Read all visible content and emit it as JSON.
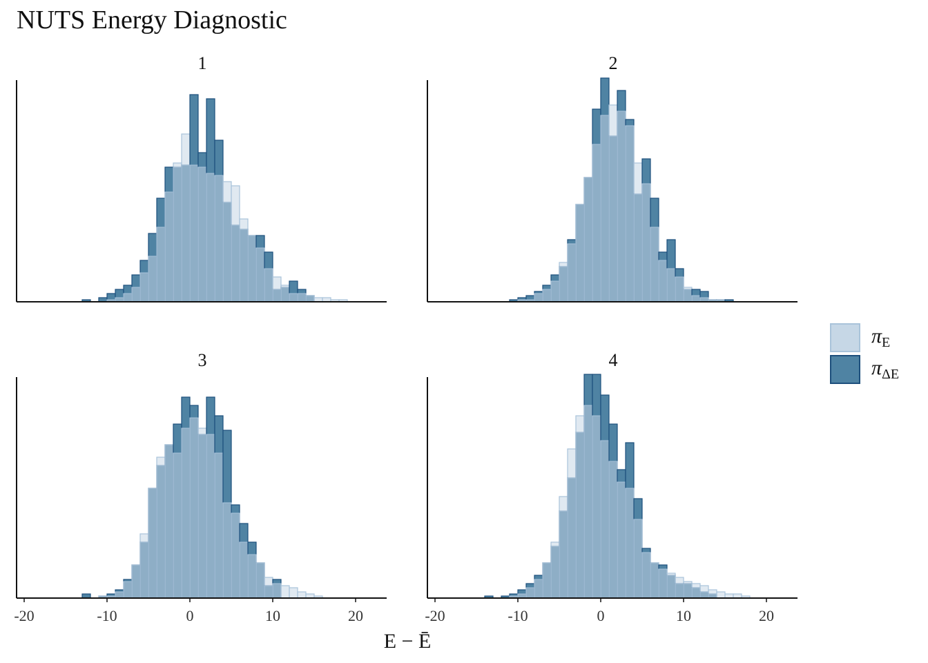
{
  "title": "NUTS Energy Diagnostic",
  "colors": {
    "pi_E_fill": "#c6d7e6",
    "pi_E_stroke": "#a9c3da",
    "pi_dE_fill": "#4f83a3",
    "pi_dE_stroke": "#1d4f7c",
    "overlap_fill": "#8eaec6"
  },
  "legend": {
    "items": [
      {
        "symbol": "π",
        "sub": "E",
        "key": "pi_E"
      },
      {
        "symbol": "π",
        "sub": "ΔE",
        "key": "pi_dE"
      }
    ]
  },
  "chart_data": {
    "type": "histogram-facets",
    "xlabel": "E − Ē",
    "xlim": [
      -21,
      24
    ],
    "xticks": [
      -20,
      -10,
      0,
      10,
      20
    ],
    "bin_width": 1,
    "bin_start": -15,
    "facets": [
      {
        "label": "1",
        "pi_E": [
          0,
          0,
          0,
          0,
          0,
          1,
          2,
          4,
          7,
          14,
          22,
          36,
          53,
          67,
          81,
          66,
          65,
          62,
          61,
          58,
          56,
          40,
          32,
          26,
          16,
          12,
          8,
          4,
          4,
          3,
          2,
          2,
          1,
          1,
          0,
          0,
          0,
          0
        ],
        "pi_dE": [
          0,
          0,
          1,
          0,
          2,
          4,
          6,
          8,
          13,
          20,
          33,
          50,
          65,
          65,
          66,
          100,
          72,
          98,
          78,
          48,
          37,
          35,
          32,
          32,
          24,
          6,
          7,
          10,
          6,
          3,
          0,
          0,
          0,
          0,
          0,
          0,
          0,
          0
        ]
      },
      {
        "label": "2",
        "pi_E": [
          0,
          0,
          0,
          0,
          0,
          1,
          1,
          4,
          6,
          10,
          19,
          28,
          47,
          60,
          76,
          90,
          95,
          92,
          85,
          67,
          57,
          36,
          20,
          16,
          12,
          7,
          3,
          2,
          1,
          1,
          0,
          0,
          0,
          0,
          0,
          0,
          0,
          0
        ],
        "pi_dE": [
          0,
          0,
          0,
          0,
          1,
          2,
          3,
          5,
          8,
          13,
          17,
          30,
          47,
          60,
          93,
          108,
          80,
          102,
          88,
          52,
          69,
          50,
          24,
          30,
          16,
          6,
          6,
          5,
          1,
          1,
          1,
          0,
          0,
          0,
          0,
          0,
          0,
          0
        ]
      },
      {
        "label": "3",
        "pi_E": [
          0,
          0,
          0,
          0,
          1,
          1,
          3,
          8,
          16,
          31,
          53,
          68,
          74,
          70,
          82,
          87,
          82,
          79,
          70,
          46,
          41,
          27,
          21,
          17,
          10,
          7,
          6,
          5,
          3,
          2,
          1,
          0,
          0,
          0,
          0,
          0,
          0,
          0
        ],
        "pi_dE": [
          0,
          0,
          2,
          0,
          1,
          2,
          4,
          9,
          16,
          27,
          53,
          64,
          74,
          84,
          97,
          93,
          79,
          97,
          88,
          81,
          45,
          36,
          27,
          17,
          6,
          9,
          0,
          0,
          0,
          0,
          0,
          0,
          0,
          0,
          0,
          0,
          0,
          0
        ]
      },
      {
        "label": "4",
        "pi_E": [
          0,
          0,
          0,
          0,
          1,
          2,
          5,
          9,
          17,
          27,
          49,
          72,
          88,
          93,
          88,
          76,
          66,
          56,
          53,
          38,
          22,
          17,
          14,
          12,
          10,
          8,
          7,
          6,
          4,
          3,
          2,
          2,
          1,
          0,
          0,
          0,
          0,
          0
        ],
        "pi_dE": [
          0,
          1,
          0,
          1,
          2,
          4,
          7,
          11,
          17,
          25,
          42,
          58,
          80,
          108,
          108,
          98,
          84,
          62,
          75,
          48,
          24,
          17,
          16,
          11,
          7,
          7,
          5,
          3,
          2,
          0,
          0,
          0,
          0,
          0,
          0,
          0,
          0,
          0
        ]
      }
    ]
  }
}
